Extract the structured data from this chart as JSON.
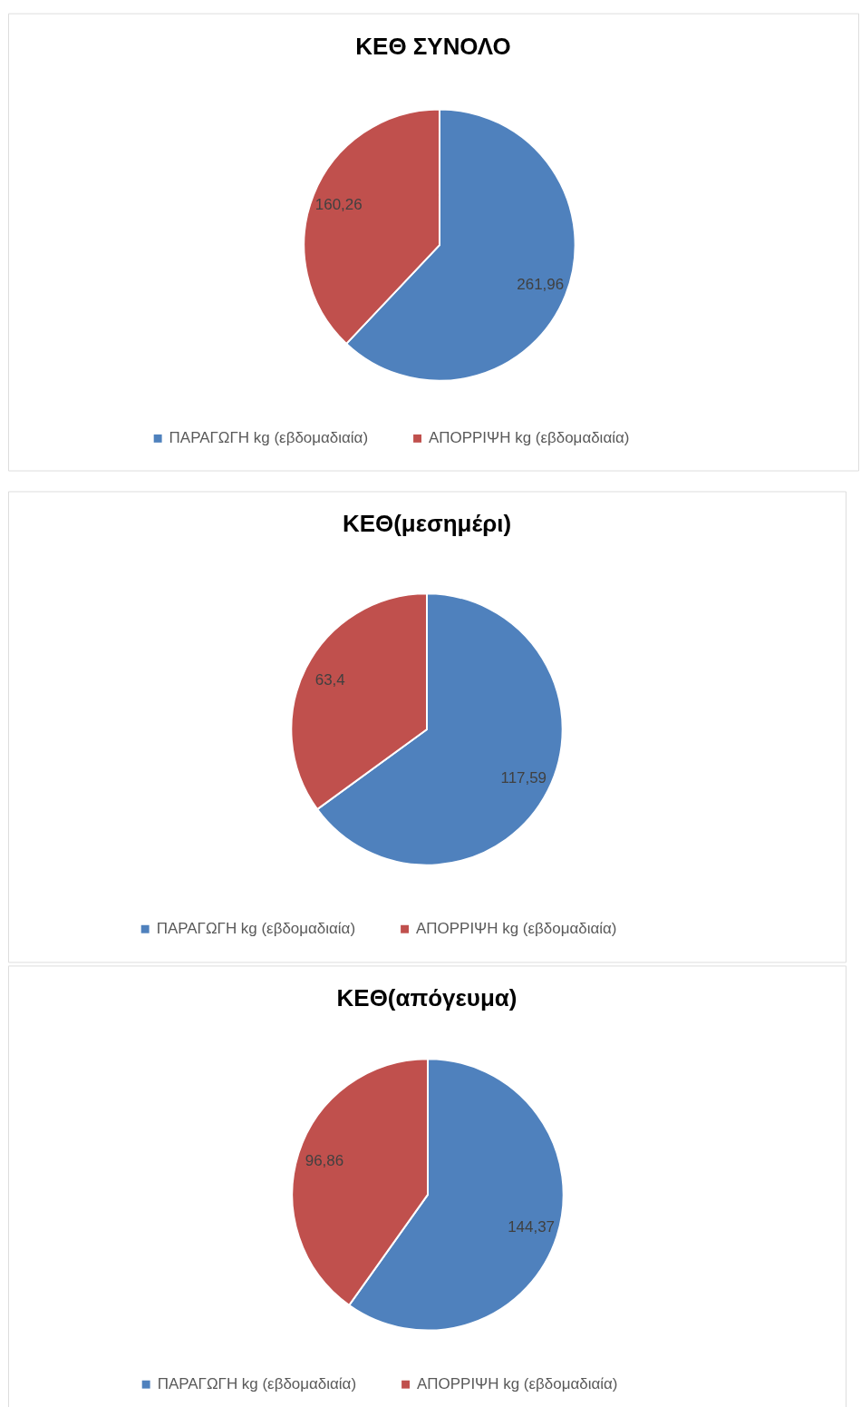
{
  "chart_data": [
    {
      "type": "pie",
      "title": "ΚΕΘ ΣΥΝΟΛΟ",
      "categories": [
        "ΠΑΡΑΓΩΓΗ kg (εβδομαδιαία)",
        "ΑΠΟΡΡΙΨΗ kg (εβδομαδιαία)"
      ],
      "values": [
        261.96,
        160.26
      ],
      "colors": [
        "#4f81bd",
        "#c0504d"
      ],
      "value_labels": [
        "261,96",
        "160,26"
      ],
      "legend": "bottom"
    },
    {
      "type": "pie",
      "title": "ΚΕΘ(μεσημέρι)",
      "categories": [
        "ΠΑΡΑΓΩΓΗ kg (εβδομαδιαία)",
        "ΑΠΟΡΡΙΨΗ kg (εβδομαδιαία)"
      ],
      "values": [
        117.59,
        63.4
      ],
      "colors": [
        "#4f81bd",
        "#c0504d"
      ],
      "value_labels": [
        "117,59",
        "63,4"
      ],
      "legend": "bottom"
    },
    {
      "type": "pie",
      "title": "ΚΕΘ(απόγευμα)",
      "categories": [
        "ΠΑΡΑΓΩΓΗ kg (εβδομαδιαία)",
        "ΑΠΟΡΡΙΨΗ kg (εβδομαδιαία)"
      ],
      "values": [
        144.37,
        96.86
      ],
      "colors": [
        "#4f81bd",
        "#c0504d"
      ],
      "value_labels": [
        "144,37",
        "96,86"
      ],
      "legend": "bottom"
    }
  ]
}
